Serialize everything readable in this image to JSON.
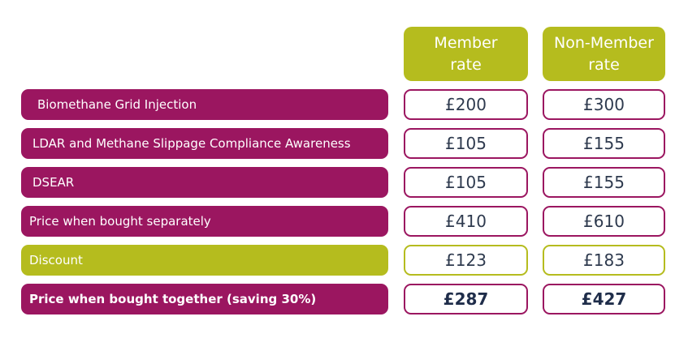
{
  "header": {
    "member_line1": "Member",
    "member_line2": "rate",
    "nonmember_line1": "Non-Member",
    "nonmember_line2": "rate"
  },
  "rows": [
    {
      "label": "Biomethane Grid Injection",
      "member": "£200",
      "nonmember": "£300"
    },
    {
      "label": "LDAR and Methane Slippage Compliance Awareness",
      "member": "£105",
      "nonmember": "£155"
    },
    {
      "label": "DSEAR",
      "member": "£105",
      "nonmember": "£155"
    },
    {
      "label": "Price when bought separately",
      "member": "£410",
      "nonmember": "£610"
    },
    {
      "label": "Discount",
      "member": "£123",
      "nonmember": "£183"
    },
    {
      "label": "Price when bought together (saving 30%)",
      "member": "£287",
      "nonmember": "£427"
    }
  ],
  "colors": {
    "magenta": "#9b1660",
    "lime": "#b5bc1e",
    "value_text": "#2e3a4e"
  }
}
